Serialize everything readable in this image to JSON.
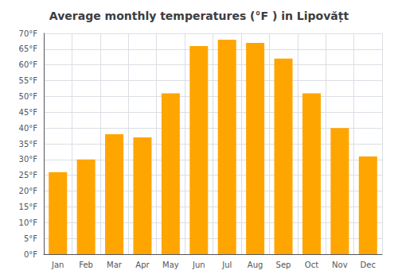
{
  "chart_data": {
    "type": "bar",
    "title": "Average monthly temperatures (°F ) in Lipovățt",
    "categories": [
      "Jan",
      "Feb",
      "Mar",
      "Apr",
      "May",
      "Jun",
      "Jul",
      "Aug",
      "Sep",
      "Oct",
      "Nov",
      "Dec"
    ],
    "values": [
      26,
      30,
      38,
      37,
      51,
      66,
      68,
      67,
      62,
      51,
      40,
      31
    ],
    "color": "#FFA500",
    "ylim": [
      0,
      70
    ],
    "yticks": [
      {
        "value": 0,
        "label": "0°F"
      },
      {
        "value": 5,
        "label": "5°F"
      },
      {
        "value": 10,
        "label": "10°F"
      },
      {
        "value": 15,
        "label": "15°F"
      },
      {
        "value": 20,
        "label": "20°F"
      },
      {
        "value": 25,
        "label": "25°F"
      },
      {
        "value": 30,
        "label": "30°F"
      },
      {
        "value": 35,
        "label": "35°F"
      },
      {
        "value": 40,
        "label": "40°F"
      },
      {
        "value": 45,
        "label": "45°F"
      },
      {
        "value": 50,
        "label": "50°F"
      },
      {
        "value": 55,
        "label": "55°F"
      },
      {
        "value": 60,
        "label": "60°F"
      },
      {
        "value": 65,
        "label": "65°F"
      },
      {
        "value": 70,
        "label": "70°F"
      }
    ],
    "grid": true
  }
}
